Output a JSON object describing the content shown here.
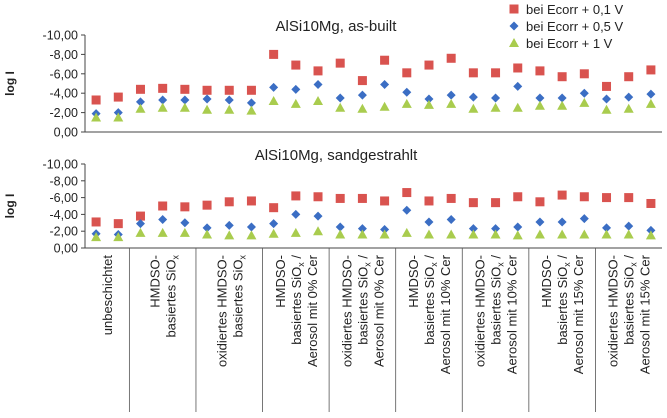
{
  "chart_data": [
    {
      "type": "scatter",
      "title": "AlSi10Mg, as-built",
      "ylabel": "log I",
      "ylim": [
        0,
        -10
      ],
      "yticks": [
        "-10,00",
        "-8,00",
        "-6,00",
        "-4,00",
        "-2,00",
        "0,00"
      ],
      "ytick_values": [
        -10,
        -8,
        -6,
        -4,
        -2,
        0
      ],
      "y_inverted": true,
      "grid": false,
      "series": [
        {
          "name": "bei Ecorr + 0,1 V",
          "color": "#d9534f",
          "marker": "square",
          "values": [
            -3.3,
            -3.6,
            -4.4,
            -4.5,
            -4.4,
            -4.3,
            -4.3,
            -4.3,
            -8.0,
            -6.9,
            -6.3,
            -7.1,
            -5.3,
            -7.4,
            -6.1,
            -6.9,
            -7.6,
            -6.1,
            -6.1,
            -6.6,
            -6.3,
            -5.7,
            -6.0,
            -4.7,
            -5.7,
            -6.4
          ]
        },
        {
          "name": "bei Ecorr + 0,5 V",
          "color": "#3b6ec4",
          "marker": "diamond",
          "values": [
            -1.9,
            -2.0,
            -3.1,
            -3.3,
            -3.3,
            -3.4,
            -3.3,
            -3.0,
            -4.6,
            -4.4,
            -4.9,
            -3.5,
            -3.8,
            -4.9,
            -4.1,
            -3.4,
            -3.8,
            -3.6,
            -3.5,
            -4.7,
            -3.5,
            -3.5,
            -4.0,
            -3.4,
            -3.6,
            -3.9
          ]
        },
        {
          "name": "bei Ecorr + 1 V",
          "color": "#a9cc4e",
          "marker": "triangle",
          "values": [
            -1.5,
            -1.5,
            -2.4,
            -2.5,
            -2.5,
            -2.3,
            -2.3,
            -2.2,
            -3.2,
            -2.9,
            -3.2,
            -2.5,
            -2.4,
            -2.6,
            -2.9,
            -2.8,
            -2.9,
            -2.4,
            -2.5,
            -2.5,
            -2.7,
            -2.7,
            -3.0,
            -2.3,
            -2.4,
            -2.9
          ]
        }
      ]
    },
    {
      "type": "scatter",
      "title": "AlSi10Mg, sandgestrahlt",
      "ylabel": "log I",
      "ylim": [
        0,
        -10
      ],
      "yticks": [
        "-10,00",
        "-8,00",
        "-6,00",
        "-4,00",
        "-2,00",
        "0,00"
      ],
      "ytick_values": [
        -10,
        -8,
        -6,
        -4,
        -2,
        0
      ],
      "y_inverted": true,
      "grid": false,
      "series": [
        {
          "name": "bei Ecorr + 0,1 V",
          "color": "#d9534f",
          "marker": "square",
          "values": [
            -3.1,
            -2.9,
            -3.8,
            -5.0,
            -4.9,
            -5.1,
            -5.5,
            -5.6,
            -4.8,
            -6.2,
            -6.1,
            -5.9,
            -5.9,
            -5.6,
            -6.6,
            -5.6,
            -5.9,
            -5.4,
            -5.4,
            -6.1,
            -5.5,
            -6.3,
            -6.1,
            -6.0,
            -6.0,
            -5.3
          ]
        },
        {
          "name": "bei Ecorr + 0,5 V",
          "color": "#3b6ec4",
          "marker": "diamond",
          "values": [
            -1.7,
            -1.6,
            -2.9,
            -3.4,
            -3.0,
            -2.4,
            -2.7,
            -2.5,
            -2.9,
            -4.0,
            -3.8,
            -2.5,
            -2.3,
            -2.2,
            -4.5,
            -3.1,
            -3.4,
            -2.3,
            -2.3,
            -2.5,
            -3.1,
            -3.1,
            -3.5,
            -2.4,
            -2.6,
            -2.1
          ]
        },
        {
          "name": "bei Ecorr + 1 V",
          "color": "#a9cc4e",
          "marker": "triangle",
          "values": [
            -1.3,
            -1.3,
            -1.8,
            -1.8,
            -1.8,
            -1.6,
            -1.5,
            -1.5,
            -1.7,
            -1.8,
            -2.0,
            -1.6,
            -1.6,
            -1.6,
            -1.8,
            -1.6,
            -1.6,
            -1.6,
            -1.6,
            -1.5,
            -1.6,
            -1.6,
            -1.6,
            -1.6,
            -1.6,
            -1.5
          ]
        }
      ]
    }
  ],
  "categories": [
    {
      "lines": [
        {
          "t": "unbeschichtet"
        }
      ],
      "points": 2
    },
    {
      "lines": [
        {
          "t": "HMDSO-"
        },
        {
          "t": "basiertes SiO",
          "sub": "x"
        }
      ],
      "points": 3
    },
    {
      "lines": [
        {
          "t": "oxidiertes HMDSO-"
        },
        {
          "t": "basiertes SiO",
          "sub": "x"
        }
      ],
      "points": 3
    },
    {
      "lines": [
        {
          "t": "HMDSO-"
        },
        {
          "t": "basiertes SiO",
          "sub": "x",
          "after": " /"
        },
        {
          "t": "Aerosol mit 0% Cer"
        }
      ],
      "points": 3
    },
    {
      "lines": [
        {
          "t": "oxidiertes HMDSO-"
        },
        {
          "t": "basiertes SiO",
          "sub": "x",
          "after": " /"
        },
        {
          "t": "Aerosol mit 0% Cer"
        }
      ],
      "points": 3
    },
    {
      "lines": [
        {
          "t": "HMDSO-"
        },
        {
          "t": "basiertes SiO",
          "sub": "x",
          "after": " /"
        },
        {
          "t": "Aerosol mit 10% Cer"
        }
      ],
      "points": 3
    },
    {
      "lines": [
        {
          "t": "oxidiertes HMDSO-"
        },
        {
          "t": "basiertes SiO",
          "sub": "x",
          "after": " /"
        },
        {
          "t": "Aerosol mit 10% Cer"
        }
      ],
      "points": 3
    },
    {
      "lines": [
        {
          "t": "HMDSO-"
        },
        {
          "t": "basiertes SiO",
          "sub": "x",
          "after": " /"
        },
        {
          "t": "Aerosol mit 15% Cer"
        }
      ],
      "points": 3
    },
    {
      "lines": [
        {
          "t": "oxidiertes HMDSO-"
        },
        {
          "t": "basiertes SiO",
          "sub": "x",
          "after": " /"
        },
        {
          "t": "Aerosol mit 15% Cer"
        }
      ],
      "points": 3
    }
  ],
  "legend": {
    "placement": "top-right",
    "items": [
      {
        "label": "bei Ecorr + 0,1 V",
        "color": "#d9534f",
        "marker": "square"
      },
      {
        "label": "bei Ecorr + 0,5 V",
        "color": "#3b6ec4",
        "marker": "diamond"
      },
      {
        "label": "bei Ecorr + 1 V",
        "color": "#a9cc4e",
        "marker": "triangle"
      }
    ]
  }
}
